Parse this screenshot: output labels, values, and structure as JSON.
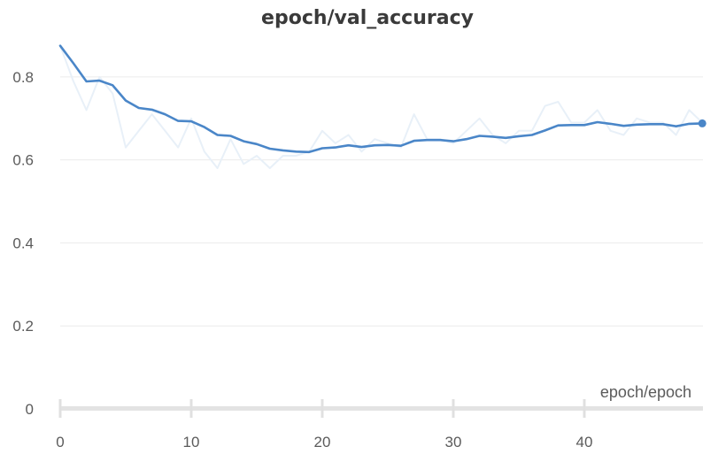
{
  "chart_data": {
    "type": "line",
    "title": "epoch/val_accuracy",
    "xlabel": "epoch/epoch",
    "ylabel": "",
    "xlim": [
      0,
      49
    ],
    "ylim": [
      0,
      0.9
    ],
    "xticks": [
      0,
      10,
      20,
      30,
      40
    ],
    "yticks": [
      0,
      0.2,
      0.4,
      0.6,
      0.8
    ],
    "xtick_labels": [
      "0",
      "10",
      "20",
      "30",
      "40"
    ],
    "ytick_labels": [
      "0",
      "0.2",
      "0.4",
      "0.6",
      "0.8"
    ],
    "grid": true,
    "series": [
      {
        "role": "raw",
        "color": "#e8f0f8",
        "x": [
          0,
          1,
          2,
          3,
          4,
          5,
          6,
          7,
          8,
          9,
          10,
          11,
          12,
          13,
          14,
          15,
          16,
          17,
          18,
          19,
          20,
          21,
          22,
          23,
          24,
          25,
          26,
          27,
          28,
          29,
          30,
          31,
          32,
          33,
          34,
          35,
          36,
          37,
          38,
          39,
          40,
          41,
          42,
          43,
          44,
          45,
          46,
          47,
          48,
          49
        ],
        "y": [
          0.875,
          0.79,
          0.72,
          0.8,
          0.76,
          0.63,
          0.67,
          0.71,
          0.67,
          0.63,
          0.7,
          0.62,
          0.58,
          0.65,
          0.59,
          0.61,
          0.58,
          0.61,
          0.61,
          0.62,
          0.67,
          0.64,
          0.66,
          0.62,
          0.65,
          0.64,
          0.63,
          0.71,
          0.65,
          0.65,
          0.64,
          0.67,
          0.7,
          0.66,
          0.64,
          0.67,
          0.67,
          0.73,
          0.74,
          0.69,
          0.69,
          0.72,
          0.67,
          0.66,
          0.7,
          0.69,
          0.69,
          0.66,
          0.72,
          0.69
        ]
      },
      {
        "role": "smoothed",
        "color": "#4a86c8",
        "x": [
          0,
          1,
          2,
          3,
          4,
          5,
          6,
          7,
          8,
          9,
          10,
          11,
          12,
          13,
          14,
          15,
          16,
          17,
          18,
          19,
          20,
          21,
          22,
          23,
          24,
          25,
          26,
          27,
          28,
          29,
          30,
          31,
          32,
          33,
          34,
          35,
          36,
          37,
          38,
          39,
          40,
          41,
          42,
          43,
          44,
          45,
          46,
          47,
          48,
          49
        ],
        "y": [
          0.875,
          0.833,
          0.789,
          0.791,
          0.78,
          0.743,
          0.725,
          0.721,
          0.71,
          0.694,
          0.693,
          0.679,
          0.66,
          0.658,
          0.645,
          0.638,
          0.627,
          0.623,
          0.62,
          0.619,
          0.628,
          0.63,
          0.635,
          0.631,
          0.635,
          0.636,
          0.634,
          0.646,
          0.648,
          0.648,
          0.645,
          0.65,
          0.658,
          0.656,
          0.653,
          0.657,
          0.66,
          0.671,
          0.683,
          0.684,
          0.684,
          0.691,
          0.687,
          0.682,
          0.685,
          0.686,
          0.686,
          0.681,
          0.687,
          0.688
        ]
      }
    ]
  }
}
